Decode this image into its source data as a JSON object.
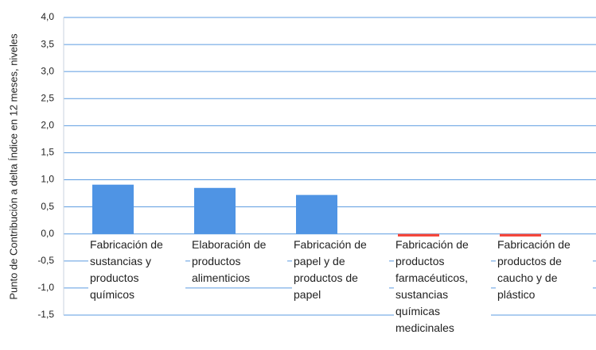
{
  "chart_data": {
    "type": "bar",
    "y_label": "Punto de Contribución a delta Índice en 12 meses, niveles",
    "categories": [
      "Fabricación de sustancias y productos químicos",
      "Elaboración de productos alimenticios",
      "Fabricación de papel y de productos de papel",
      "Fabricación de productos farmacéuticos, sustancias químicas medicinales",
      "Fabricación de productos de caucho y de plástico"
    ],
    "values": [
      0.91,
      0.85,
      0.72,
      -0.12,
      -0.21
    ],
    "colors": [
      "#4f94e4",
      "#4f94e4",
      "#4f94e4",
      "#f5473b",
      "#f5473b"
    ],
    "ylim": [
      -1.5,
      4.0
    ],
    "yticks": [
      {
        "value": -1.5,
        "label": "-1,5"
      },
      {
        "value": -1.0,
        "label": "-1,0"
      },
      {
        "value": -0.5,
        "label": "-0,5"
      },
      {
        "value": 0.0,
        "label": "0,0"
      },
      {
        "value": 0.5,
        "label": "0,5"
      },
      {
        "value": 1.0,
        "label": "1,0"
      },
      {
        "value": 1.5,
        "label": "1,5"
      },
      {
        "value": 2.0,
        "label": "2,0"
      },
      {
        "value": 2.5,
        "label": "2,5"
      },
      {
        "value": 3.0,
        "label": "3,0"
      },
      {
        "value": 3.5,
        "label": "3,5"
      },
      {
        "value": 4.0,
        "label": "4,0"
      }
    ],
    "grid": true
  }
}
